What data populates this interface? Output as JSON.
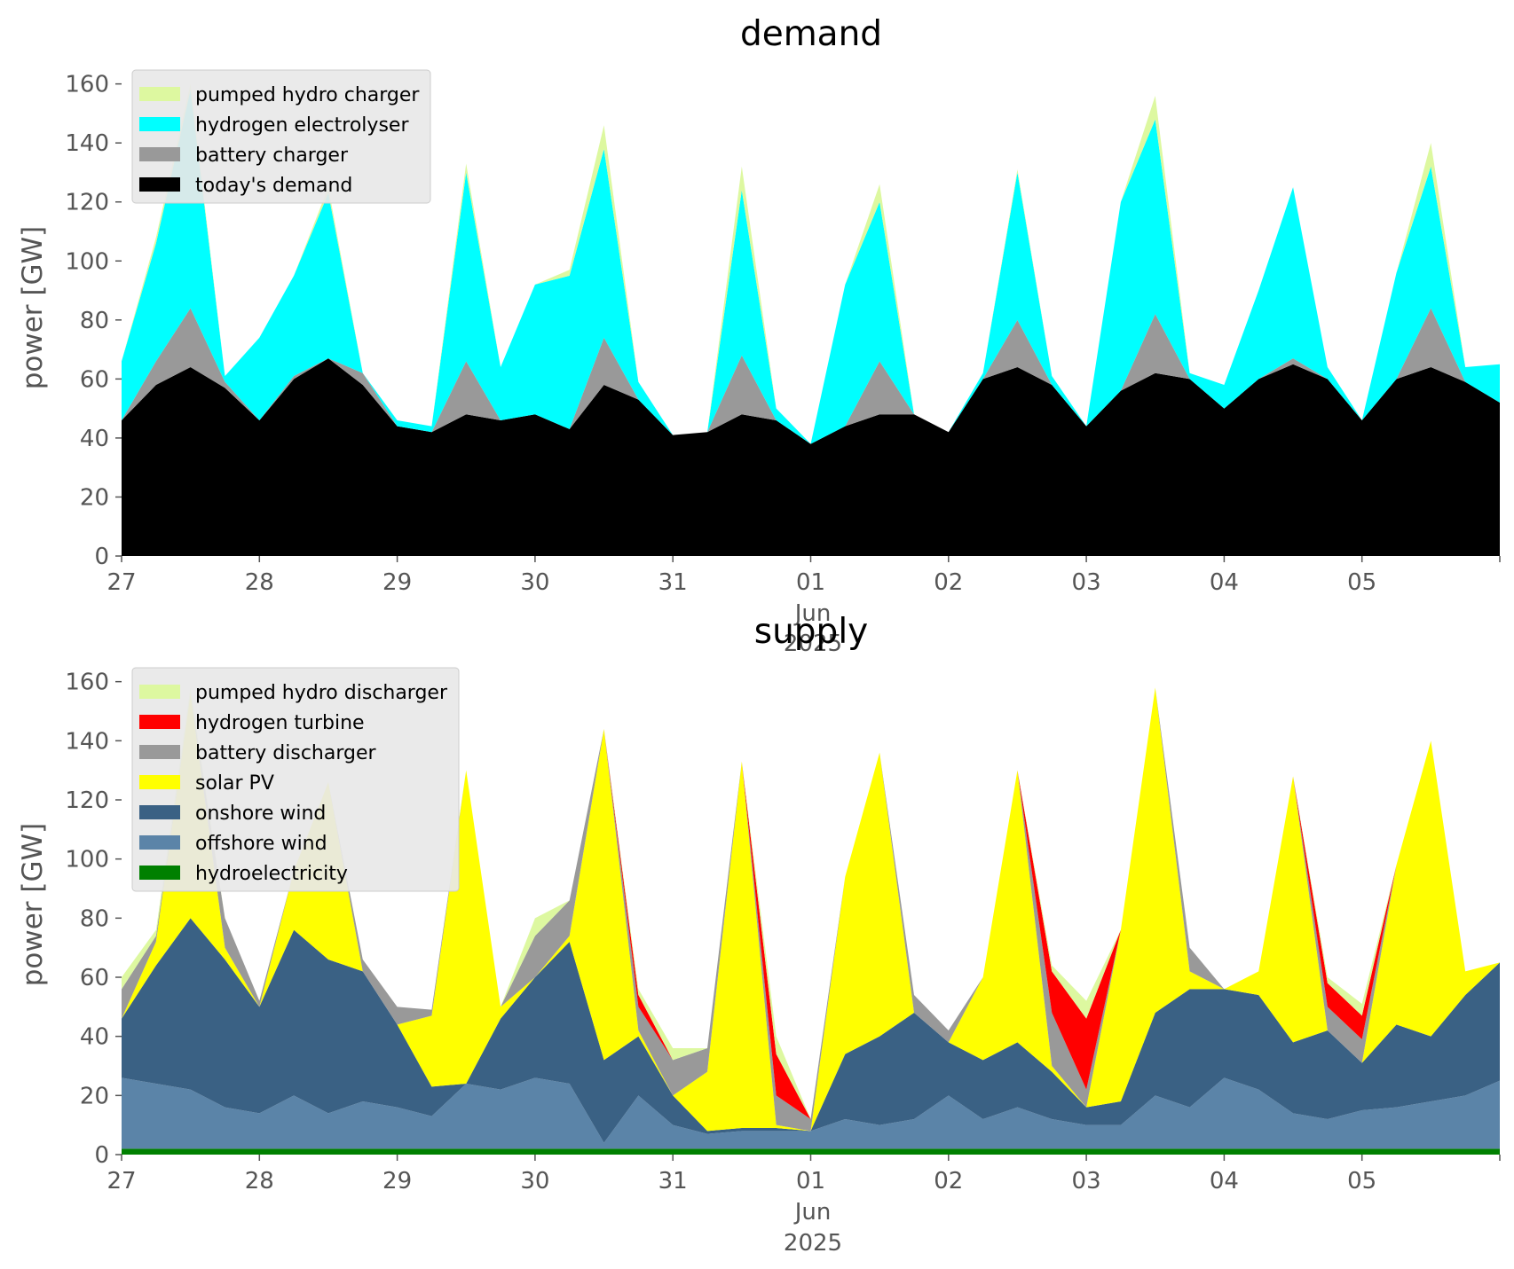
{
  "figure": {
    "background": "#ffffff",
    "axes_background": "#ffffff",
    "legend_background": "#e8e8e8"
  },
  "x_ticks": [
    "27",
    "28",
    "29",
    "30",
    "31",
    "01",
    "02",
    "03",
    "04",
    "05"
  ],
  "x_month_label": "Jun",
  "x_year_label": "2025",
  "chart_data": [
    {
      "type": "area",
      "stacked": true,
      "title": "demand",
      "ylabel": "power [GW]",
      "xlabel": "",
      "ylim": [
        0,
        165
      ],
      "y_ticks": [
        0,
        20,
        40,
        60,
        80,
        100,
        120,
        140,
        160
      ],
      "x_range": [
        "2025-05-27",
        "2025-06-06"
      ],
      "grid": false,
      "legend_position": "top-left",
      "x": [
        "2025-05-27 00:00",
        "2025-05-27 06:00",
        "2025-05-27 12:00",
        "2025-05-27 18:00",
        "2025-05-28 00:00",
        "2025-05-28 06:00",
        "2025-05-28 12:00",
        "2025-05-28 18:00",
        "2025-05-29 00:00",
        "2025-05-29 06:00",
        "2025-05-29 12:00",
        "2025-05-29 18:00",
        "2025-05-30 00:00",
        "2025-05-30 06:00",
        "2025-05-30 12:00",
        "2025-05-30 18:00",
        "2025-05-31 00:00",
        "2025-05-31 06:00",
        "2025-05-31 12:00",
        "2025-05-31 18:00",
        "2025-06-01 00:00",
        "2025-06-01 06:00",
        "2025-06-01 12:00",
        "2025-06-01 18:00",
        "2025-06-02 00:00",
        "2025-06-02 06:00",
        "2025-06-02 12:00",
        "2025-06-02 18:00",
        "2025-06-03 00:00",
        "2025-06-03 06:00",
        "2025-06-03 12:00",
        "2025-06-03 18:00",
        "2025-06-04 00:00",
        "2025-06-04 06:00",
        "2025-06-04 12:00",
        "2025-06-04 18:00",
        "2025-06-05 00:00",
        "2025-06-05 06:00",
        "2025-06-05 12:00",
        "2025-06-05 18:00",
        "2025-06-06 00:00"
      ],
      "series": [
        {
          "name": "today's demand",
          "color": "#000000",
          "values": [
            46,
            58,
            64,
            57,
            46,
            60,
            67,
            58,
            44,
            42,
            48,
            46,
            48,
            43,
            58,
            53,
            41,
            42,
            48,
            46,
            38,
            44,
            48,
            48,
            42,
            60,
            64,
            58,
            44,
            56,
            62,
            60,
            50,
            60,
            65,
            60,
            46,
            60,
            64,
            59,
            52
          ]
        },
        {
          "name": "battery charger",
          "color": "#999999",
          "values": [
            0,
            8,
            20,
            2,
            0,
            1,
            0,
            4,
            0,
            0,
            18,
            0,
            0,
            0,
            16,
            0,
            0,
            0,
            20,
            0,
            0,
            0,
            18,
            0,
            0,
            0,
            16,
            0,
            0,
            0,
            20,
            0,
            0,
            0,
            2,
            0,
            0,
            0,
            20,
            0,
            0
          ]
        },
        {
          "name": "hydrogen electrolyser",
          "color": "#00ffff",
          "values": [
            20,
            40,
            74,
            2,
            28,
            34,
            56,
            0,
            2,
            2,
            64,
            18,
            44,
            52,
            64,
            6,
            0,
            0,
            56,
            4,
            0,
            48,
            54,
            0,
            0,
            2,
            50,
            3,
            0,
            64,
            66,
            2,
            8,
            30,
            58,
            4,
            0,
            36,
            48,
            5,
            13
          ]
        },
        {
          "name": "pumped hydro charger",
          "color": "#ddf8a0",
          "values": [
            0,
            2,
            2,
            0,
            0,
            0,
            2,
            0,
            0,
            0,
            3,
            0,
            0,
            2,
            8,
            0,
            0,
            0,
            8,
            0,
            0,
            0,
            6,
            0,
            0,
            0,
            1,
            0,
            0,
            0,
            8,
            0,
            0,
            0,
            0,
            0,
            0,
            0,
            8,
            0,
            0
          ]
        }
      ]
    },
    {
      "type": "area",
      "stacked": true,
      "title": "supply",
      "ylabel": "power [GW]",
      "xlabel": "",
      "ylim": [
        0,
        165
      ],
      "y_ticks": [
        0,
        20,
        40,
        60,
        80,
        100,
        120,
        140,
        160
      ],
      "x_range": [
        "2025-05-27",
        "2025-06-06"
      ],
      "grid": false,
      "legend_position": "top-left",
      "x": [
        "2025-05-27 00:00",
        "2025-05-27 06:00",
        "2025-05-27 12:00",
        "2025-05-27 18:00",
        "2025-05-28 00:00",
        "2025-05-28 06:00",
        "2025-05-28 12:00",
        "2025-05-28 18:00",
        "2025-05-29 00:00",
        "2025-05-29 06:00",
        "2025-05-29 12:00",
        "2025-05-29 18:00",
        "2025-05-30 00:00",
        "2025-05-30 06:00",
        "2025-05-30 12:00",
        "2025-05-30 18:00",
        "2025-05-31 00:00",
        "2025-05-31 06:00",
        "2025-05-31 12:00",
        "2025-05-31 18:00",
        "2025-06-01 00:00",
        "2025-06-01 06:00",
        "2025-06-01 12:00",
        "2025-06-01 18:00",
        "2025-06-02 00:00",
        "2025-06-02 06:00",
        "2025-06-02 12:00",
        "2025-06-02 18:00",
        "2025-06-03 00:00",
        "2025-06-03 06:00",
        "2025-06-03 12:00",
        "2025-06-03 18:00",
        "2025-06-04 00:00",
        "2025-06-04 06:00",
        "2025-06-04 12:00",
        "2025-06-04 18:00",
        "2025-06-05 00:00",
        "2025-06-05 06:00",
        "2025-06-05 12:00",
        "2025-06-05 18:00",
        "2025-06-06 00:00"
      ],
      "series": [
        {
          "name": "hydroelectricity",
          "color": "#008000",
          "values": [
            2,
            2,
            2,
            2,
            2,
            2,
            2,
            2,
            2,
            2,
            2,
            2,
            2,
            2,
            2,
            2,
            2,
            2,
            2,
            2,
            2,
            2,
            2,
            2,
            2,
            2,
            2,
            2,
            2,
            2,
            2,
            2,
            2,
            2,
            2,
            2,
            2,
            2,
            2,
            2,
            2
          ]
        },
        {
          "name": "offshore wind",
          "color": "#5b84a8",
          "values": [
            24,
            22,
            20,
            14,
            12,
            18,
            12,
            16,
            14,
            11,
            22,
            20,
            24,
            22,
            2,
            18,
            8,
            5,
            6,
            6,
            6,
            10,
            8,
            10,
            18,
            10,
            14,
            10,
            8,
            8,
            18,
            14,
            24,
            20,
            12,
            10,
            13,
            14,
            16,
            18,
            23
          ]
        },
        {
          "name": "onshore wind",
          "color": "#3a6184",
          "values": [
            20,
            40,
            58,
            50,
            36,
            56,
            52,
            44,
            28,
            10,
            0,
            24,
            34,
            48,
            28,
            20,
            10,
            1,
            1,
            1,
            0,
            22,
            30,
            36,
            18,
            20,
            22,
            16,
            6,
            8,
            28,
            40,
            30,
            32,
            24,
            30,
            16,
            28,
            22,
            34,
            40
          ]
        },
        {
          "name": "solar PV",
          "color": "#ffff00",
          "values": [
            0,
            8,
            76,
            4,
            0,
            20,
            60,
            0,
            0,
            24,
            106,
            4,
            0,
            2,
            112,
            2,
            0,
            20,
            124,
            1,
            0,
            60,
            96,
            0,
            0,
            28,
            92,
            2,
            0,
            58,
            110,
            6,
            0,
            8,
            90,
            0,
            0,
            54,
            100,
            8,
            0
          ]
        },
        {
          "name": "battery discharger",
          "color": "#999999",
          "values": [
            10,
            2,
            0,
            10,
            2,
            0,
            0,
            4,
            6,
            2,
            0,
            0,
            14,
            12,
            0,
            8,
            12,
            8,
            0,
            10,
            4,
            0,
            0,
            6,
            4,
            0,
            0,
            18,
            6,
            0,
            0,
            8,
            0,
            0,
            0,
            8,
            8,
            0,
            0,
            0,
            0
          ]
        },
        {
          "name": "hydrogen turbine",
          "color": "#ff0000",
          "values": [
            0,
            0,
            0,
            0,
            0,
            0,
            0,
            0,
            0,
            0,
            0,
            0,
            0,
            0,
            0,
            4,
            0,
            0,
            0,
            14,
            0,
            0,
            0,
            0,
            0,
            0,
            0,
            14,
            24,
            0,
            0,
            0,
            0,
            0,
            0,
            8,
            8,
            0,
            0,
            0,
            0
          ]
        },
        {
          "name": "pumped hydro discharger",
          "color": "#ddf8a0",
          "values": [
            4,
            2,
            2,
            0,
            0,
            0,
            0,
            0,
            0,
            0,
            0,
            0,
            6,
            0,
            0,
            2,
            4,
            0,
            0,
            6,
            0,
            0,
            0,
            0,
            0,
            0,
            0,
            2,
            6,
            0,
            0,
            0,
            0,
            0,
            0,
            2,
            4,
            0,
            0,
            0,
            0
          ]
        }
      ]
    }
  ]
}
